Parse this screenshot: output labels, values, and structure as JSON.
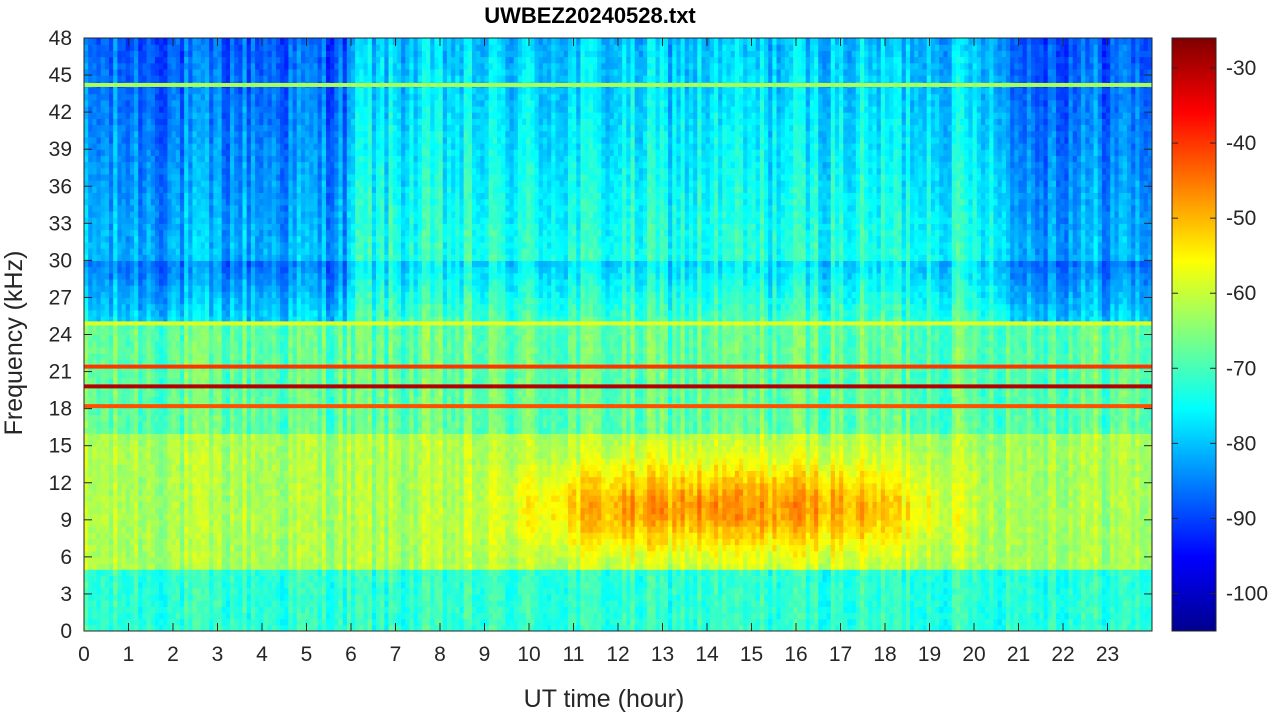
{
  "chart_data": {
    "type": "heatmap",
    "title": "UWBEZ20240528.txt",
    "xlabel": "UT time (hour)",
    "ylabel": "Frequency (kHz)",
    "xlim": [
      0,
      24
    ],
    "ylim": [
      0,
      48
    ],
    "x_ticks": [
      "0",
      "1",
      "2",
      "3",
      "4",
      "5",
      "6",
      "7",
      "8",
      "9",
      "10",
      "11",
      "12",
      "13",
      "14",
      "15",
      "16",
      "17",
      "18",
      "19",
      "20",
      "21",
      "22",
      "23"
    ],
    "y_ticks": [
      "0",
      "3",
      "6",
      "9",
      "12",
      "15",
      "18",
      "21",
      "24",
      "27",
      "30",
      "33",
      "36",
      "39",
      "42",
      "45",
      "48"
    ],
    "colorbar": {
      "colormap": "jet",
      "range": [
        -105,
        -26
      ],
      "ticks": [
        "-30",
        "-40",
        "-50",
        "-60",
        "-70",
        "-80",
        "-90",
        "-100"
      ]
    },
    "features": {
      "narrowband_lines_khz": [
        {
          "freq": 19.8,
          "level": -30
        },
        {
          "freq": 21.4,
          "level": -40
        },
        {
          "freq": 18.2,
          "level": -42
        },
        {
          "freq": 24.9,
          "level": -58
        },
        {
          "freq": 44.2,
          "level": -62
        }
      ],
      "broadband_emission": {
        "freq_range": [
          5,
          16
        ],
        "peak_hours": [
          9,
          20
        ],
        "level": -50
      },
      "quiet_background_level": -90
    }
  }
}
